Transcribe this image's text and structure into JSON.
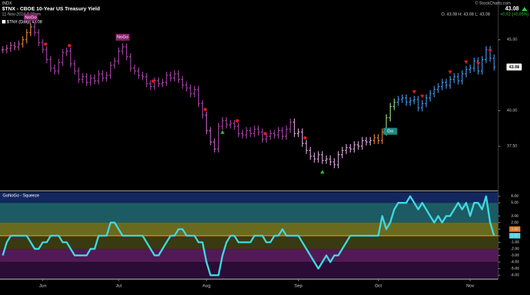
{
  "header": {
    "exchange": "INDX",
    "title": "$TNX - CBOE 10-Year US Treasury Yield",
    "date": "11-Nov-2024 8:38am",
    "credit": "© StockCharts.com",
    "last": "43.08",
    "ohlc": "O: 43.08   H: 43.08   L: 43.08",
    "change": "+0.02 (+0.05%)"
  },
  "chart_data": [
    {
      "type": "ohlc",
      "annotations": [
        "NoGo",
        "NoGo",
        "Go"
      ],
      "ylim": [
        34.4,
        47.8
      ],
      "yticks": [
        {
          "value": 45,
          "label": "45.00"
        },
        {
          "value": 40,
          "label": "40.00"
        },
        {
          "value": 37.5,
          "label": "37.50"
        }
      ],
      "series": [
        {
          "name": "$TNX (Daily) 43.08",
          "values": [
            44.3,
            44.4,
            44.6,
            44.5,
            44.7,
            45.0,
            45.5,
            45.9,
            45.5,
            44.8,
            44.3,
            43.6,
            43.0,
            42.8,
            43.4,
            44.1,
            44.2,
            43.3,
            42.8,
            42.2,
            42.4,
            42.0,
            42.3,
            42.1,
            42.6,
            42.3,
            42.5,
            43.2,
            43.5,
            44.2,
            44.5,
            43.8,
            43.0,
            42.8,
            42.5,
            42.4,
            41.9,
            41.7,
            42.1,
            41.9,
            42.0,
            42.5,
            42.3,
            42.6,
            42.2,
            41.8,
            41.6,
            41.2,
            41.5,
            40.5,
            39.7,
            38.6,
            37.8,
            37.3,
            38.9,
            39.3,
            39.0,
            39.1,
            38.9,
            38.4,
            38.3,
            38.6,
            38.4,
            38.7,
            38.5,
            38.0,
            38.2,
            38.4,
            38.3,
            38.6,
            38.2,
            38.7,
            39.2,
            38.4,
            38.5,
            37.7,
            37.2,
            36.8,
            36.6,
            36.9,
            36.5,
            36.6,
            36.4,
            36.2,
            36.9,
            37.2,
            37.4,
            37.3,
            37.6,
            37.5,
            37.9,
            37.8,
            37.9,
            38.1,
            37.9,
            38.5,
            39.5,
            40.3,
            40.6,
            40.8,
            40.9,
            40.6,
            40.7,
            40.8,
            40.2,
            40.5,
            40.9,
            41.2,
            41.5,
            41.7,
            42.0,
            41.8,
            42.2,
            42.4,
            42.1,
            42.6,
            42.9,
            43.0,
            43.5,
            42.8,
            43.6,
            44.3,
            43.7,
            43.08
          ],
          "colors": [
            "#b5a",
            "#b5a",
            "#b5a",
            "#b5a",
            "#b5a",
            "#e83",
            "#e83",
            "#e83",
            "#a4a",
            "#a4a",
            "#a4a",
            "#a4a",
            "#a4a",
            "#a4a",
            "#a4a",
            "#a4a",
            "#a4a",
            "#a4a",
            "#a4a",
            "#a4a",
            "#a4a",
            "#a4a",
            "#a4a",
            "#a4a",
            "#a4a",
            "#a4a",
            "#a4a",
            "#a4a",
            "#a4a",
            "#a4a",
            "#a4a",
            "#a4a",
            "#a4a",
            "#a4a",
            "#a4a",
            "#a4a",
            "#a4a",
            "#a4a",
            "#a4a",
            "#a4a",
            "#a4a",
            "#a4a",
            "#a4a",
            "#a4a",
            "#a4a",
            "#a4a",
            "#a4a",
            "#a4a",
            "#a4a",
            "#a4a",
            "#a4a",
            "#c6c",
            "#c6c",
            "#c6c",
            "#a4a",
            "#a4a",
            "#a4a",
            "#a4a",
            "#a4a",
            "#a4a",
            "#a4a",
            "#a4a",
            "#a4a",
            "#a4a",
            "#a4a",
            "#a4a",
            "#a4a",
            "#a4a",
            "#a4a",
            "#a4a",
            "#a4a",
            "#a4a",
            "#a4a",
            "#dad",
            "#dad",
            "#dad",
            "#dad",
            "#dad",
            "#dad",
            "#dad",
            "#dad",
            "#dad",
            "#dad",
            "#dad",
            "#dad",
            "#dad",
            "#dad",
            "#dad",
            "#dad",
            "#dad",
            "#dad",
            "#dad",
            "#dad",
            "#e83",
            "#e83",
            "#e83",
            "#9d8",
            "#9d8",
            "#9d8",
            "#49e",
            "#49e",
            "#49e",
            "#49e",
            "#49e",
            "#49e",
            "#49e",
            "#49e",
            "#49e",
            "#49e",
            "#49e",
            "#49e",
            "#49e",
            "#49e",
            "#49e",
            "#49e",
            "#49e",
            "#49e",
            "#49e",
            "#49e",
            "#49e",
            "#49e",
            "#49e",
            "#49e",
            "#49e"
          ]
        }
      ]
    },
    {
      "type": "line",
      "title": "GoNoGo - Squeeze",
      "ylim": [
        -6.6,
        6.6
      ],
      "yticks": [
        {
          "value": 6,
          "label": "6.00"
        },
        {
          "value": 5,
          "label": "5.00"
        },
        {
          "value": 3,
          "label": "3.00"
        },
        {
          "value": 2,
          "label": "2.00"
        },
        {
          "value": 1,
          "label": "1.00"
        },
        {
          "value": 0,
          "label": "0.00"
        },
        {
          "value": -1,
          "label": "-1.00"
        },
        {
          "value": -2,
          "label": "-2.00"
        },
        {
          "value": -3,
          "label": "-3.00"
        },
        {
          "value": -4,
          "label": "-4.00"
        },
        {
          "value": -5,
          "label": "-5.00"
        },
        {
          "value": -6,
          "label": "-6.00"
        }
      ],
      "xticks": [
        {
          "value": 10,
          "label": "Jun"
        },
        {
          "value": 29,
          "label": "Jul"
        },
        {
          "value": 51,
          "label": "Aug"
        },
        {
          "value": 74,
          "label": "Sep"
        },
        {
          "value": 94,
          "label": "Oct"
        },
        {
          "value": 117,
          "label": "Nov"
        }
      ],
      "zero_color": "#e07a2a",
      "series": [
        {
          "name": "GoNoGo - Squeeze",
          "color": "#3fd8e2",
          "values": [
            -3,
            -1,
            0,
            0,
            0,
            0,
            0,
            -1,
            -2,
            -2,
            -1,
            -1,
            0,
            0,
            0,
            -1,
            -1,
            -2,
            -3,
            -3,
            -3,
            -3,
            -2,
            -2,
            0,
            0,
            0,
            2,
            2,
            1,
            0,
            0,
            0,
            0,
            0,
            0,
            -1,
            -2,
            -3,
            -3,
            -2,
            -1,
            0,
            0,
            1,
            1,
            0,
            0,
            0,
            -1,
            -1,
            -4,
            -6,
            -6,
            -6,
            -3,
            -1,
            0,
            0,
            -1,
            -1,
            -1,
            -1,
            0,
            0,
            0,
            -1,
            -1,
            0,
            0,
            1,
            0,
            0,
            0,
            0,
            -1,
            -2,
            -3,
            -4,
            -5,
            -4,
            -3,
            -4,
            -3,
            -3,
            -2,
            -1,
            0,
            0,
            0,
            0,
            0,
            0,
            0,
            0,
            3,
            1,
            2,
            4,
            5,
            5,
            5,
            6,
            5,
            4,
            5,
            4,
            3,
            2,
            3,
            2,
            3,
            3,
            4,
            5,
            4,
            5,
            3,
            5,
            5,
            4,
            6,
            2,
            0
          ]
        }
      ]
    }
  ]
}
